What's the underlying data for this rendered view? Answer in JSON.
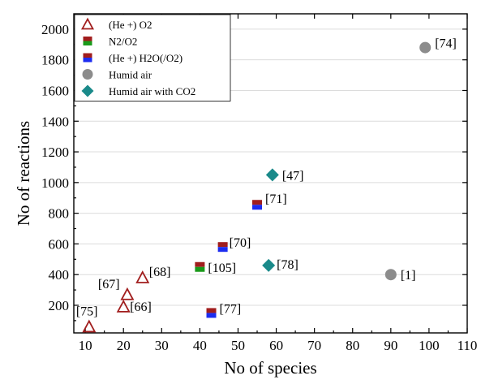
{
  "chart_data": {
    "type": "scatter",
    "xlabel": "No of species",
    "ylabel": "No of reactions",
    "xlim": [
      7,
      110
    ],
    "ylim": [
      20,
      2100
    ],
    "xticks": [
      10,
      20,
      30,
      40,
      50,
      60,
      70,
      80,
      90,
      100,
      110
    ],
    "yticks": [
      200,
      400,
      600,
      800,
      1000,
      1200,
      1400,
      1600,
      1800,
      2000
    ],
    "grid": "horizontal",
    "legend_position": "top-left",
    "series": [
      {
        "name": "(He +) O2",
        "marker": "triangle-open",
        "colors": [
          "#a11d1d"
        ],
        "points": [
          {
            "x": 11,
            "y": 60,
            "label": "[75]"
          },
          {
            "x": 20,
            "y": 190,
            "label": "[66]"
          },
          {
            "x": 21,
            "y": 270,
            "label": "[67]"
          },
          {
            "x": 25,
            "y": 380,
            "label": "[68]"
          }
        ]
      },
      {
        "name": "N2/O2",
        "marker": "square-split",
        "colors": [
          "#a11d1d",
          "#1a9a1a"
        ],
        "points": [
          {
            "x": 40,
            "y": 450,
            "label": "[105]"
          }
        ]
      },
      {
        "name": "(He +) H2O(/O2)",
        "marker": "square-split",
        "colors": [
          "#a11d1d",
          "#1c2cf0"
        ],
        "points": [
          {
            "x": 43,
            "y": 150,
            "label": "[77]"
          },
          {
            "x": 46,
            "y": 580,
            "label": "[70]"
          },
          {
            "x": 55,
            "y": 855,
            "label": "[71]"
          }
        ]
      },
      {
        "name": "Humid air",
        "marker": "circle",
        "colors": [
          "#8c8c8c"
        ],
        "points": [
          {
            "x": 90,
            "y": 400,
            "label": "[1]"
          },
          {
            "x": 99,
            "y": 1880,
            "label": "[74]"
          }
        ]
      },
      {
        "name": "Humid air with CO2",
        "marker": "diamond",
        "colors": [
          "#1a8a8a"
        ],
        "points": [
          {
            "x": 58,
            "y": 460,
            "label": "[78]"
          },
          {
            "x": 59,
            "y": 1050,
            "label": "[47]"
          }
        ]
      }
    ]
  }
}
